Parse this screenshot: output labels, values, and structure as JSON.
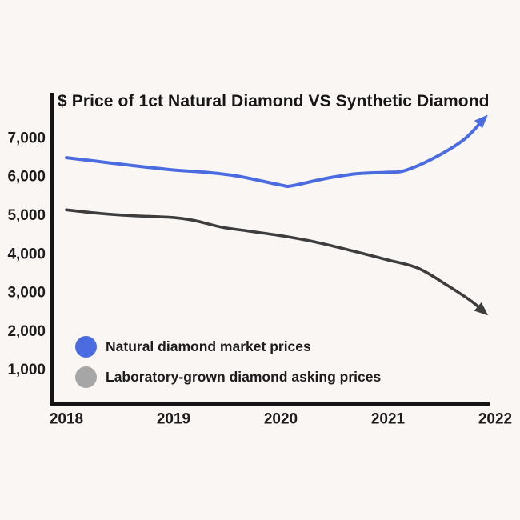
{
  "title": "$ Price of 1ct Natural Diamond VS Synthetic Diamond",
  "colors": {
    "background": "#faf6f4",
    "axis": "#141414",
    "natural_line": "#4a6ce0",
    "lab_line": "#3d3d3d",
    "legend_gray_dot": "#a6a6a6",
    "text": "#1c1c1c"
  },
  "legend": {
    "items": [
      {
        "label": "Natural diamond market prices",
        "color": "#4a6ce0"
      },
      {
        "label": "Laboratory-grown diamond asking prices",
        "color": "#a6a6a6"
      }
    ]
  },
  "chart_data": {
    "type": "line",
    "title": "$ Price of 1ct Natural Diamond VS Synthetic Diamond",
    "xlabel": "",
    "ylabel": "",
    "grid": false,
    "legend_position": "lower-left",
    "x_tick_labels": [
      "2018",
      "2019",
      "2020",
      "2021",
      "2022"
    ],
    "x_ticks": [
      2018,
      2019,
      2020,
      2021,
      2022
    ],
    "y_tick_labels": [
      "7,000",
      "6,000",
      "5,000",
      "4,000",
      "3,000",
      "2,000",
      "1,000"
    ],
    "y_ticks": [
      7000,
      6000,
      5000,
      4000,
      3000,
      2000,
      1000
    ],
    "xlim": [
      2018,
      2022.15
    ],
    "ylim": [
      0,
      7800
    ],
    "series": [
      {
        "name": "Natural diamond market prices",
        "color": "#4a6ce0",
        "arrow_end": true,
        "points": [
          [
            2018.0,
            6500
          ],
          [
            2018.3,
            6400
          ],
          [
            2018.6,
            6300
          ],
          [
            2019.0,
            6180
          ],
          [
            2019.3,
            6120
          ],
          [
            2019.6,
            6020
          ],
          [
            2020.0,
            5790
          ],
          [
            2020.1,
            5770
          ],
          [
            2020.4,
            5950
          ],
          [
            2020.7,
            6080
          ],
          [
            2021.0,
            6120
          ],
          [
            2021.15,
            6160
          ],
          [
            2021.4,
            6450
          ],
          [
            2021.7,
            6950
          ],
          [
            2021.9,
            7520
          ]
        ]
      },
      {
        "name": "Laboratory-grown diamond asking prices",
        "color": "#3d3d3d",
        "arrow_end": true,
        "points": [
          [
            2018.0,
            5150
          ],
          [
            2018.3,
            5060
          ],
          [
            2018.6,
            5000
          ],
          [
            2019.0,
            4950
          ],
          [
            2019.2,
            4870
          ],
          [
            2019.45,
            4700
          ],
          [
            2019.7,
            4600
          ],
          [
            2020.0,
            4480
          ],
          [
            2020.3,
            4330
          ],
          [
            2020.65,
            4100
          ],
          [
            2021.0,
            3850
          ],
          [
            2021.28,
            3640
          ],
          [
            2021.55,
            3200
          ],
          [
            2021.78,
            2780
          ],
          [
            2021.9,
            2500
          ]
        ]
      }
    ]
  }
}
